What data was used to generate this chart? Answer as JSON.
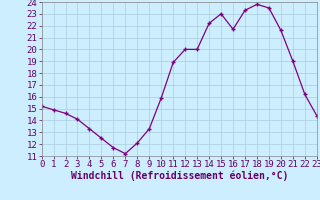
{
  "hours": [
    0,
    1,
    2,
    3,
    4,
    5,
    6,
    7,
    8,
    9,
    10,
    11,
    12,
    13,
    14,
    15,
    16,
    17,
    18,
    19,
    20,
    21,
    22,
    23
  ],
  "values": [
    15.2,
    14.9,
    14.6,
    14.1,
    13.3,
    12.5,
    11.7,
    11.2,
    12.1,
    13.3,
    15.9,
    18.9,
    20.0,
    20.0,
    22.2,
    23.0,
    21.7,
    23.3,
    23.8,
    23.5,
    21.6,
    19.0,
    16.2,
    14.4
  ],
  "line_color": "#800080",
  "marker_color": "#800080",
  "bg_color": "#cceeff",
  "grid_color": "#aaccdd",
  "xlabel": "Windchill (Refroidissement éolien,°C)",
  "xlim": [
    0,
    23
  ],
  "ylim": [
    11,
    24
  ],
  "yticks": [
    11,
    12,
    13,
    14,
    15,
    16,
    17,
    18,
    19,
    20,
    21,
    22,
    23,
    24
  ],
  "xticks": [
    0,
    1,
    2,
    3,
    4,
    5,
    6,
    7,
    8,
    9,
    10,
    11,
    12,
    13,
    14,
    15,
    16,
    17,
    18,
    19,
    20,
    21,
    22,
    23
  ],
  "tick_font_size": 6.5,
  "label_font_size": 7.0
}
